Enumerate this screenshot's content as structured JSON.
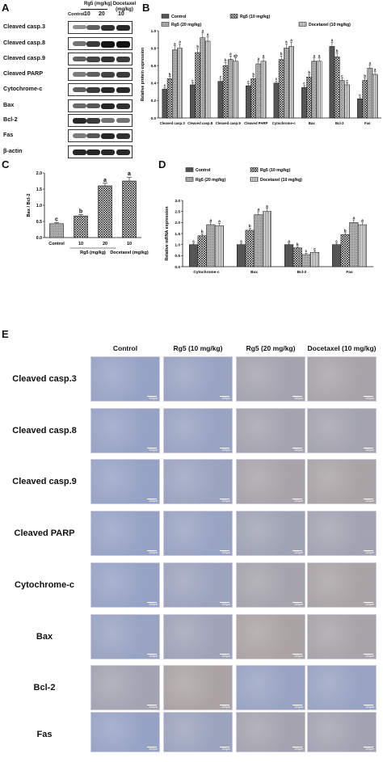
{
  "panels": {
    "A": "A",
    "B": "B",
    "C": "C",
    "D": "D",
    "E": "E"
  },
  "panel_a": {
    "header_control": "Control",
    "header_rg5": "Rg5 (mg/kg)",
    "header_docetaxel": "Docetaxel (mg/kg)",
    "doses": [
      "10",
      "20",
      "10"
    ],
    "rows": [
      {
        "label": "Cleaved casp.3",
        "intensity": [
          0.3,
          0.55,
          0.8,
          0.85
        ]
      },
      {
        "label": "Cleaved casp.8",
        "intensity": [
          0.45,
          0.75,
          0.95,
          0.95
        ]
      },
      {
        "label": "Cleaved casp.9",
        "intensity": [
          0.55,
          0.7,
          0.8,
          0.75
        ]
      },
      {
        "label": "Cleaved PARP",
        "intensity": [
          0.4,
          0.55,
          0.7,
          0.75
        ]
      },
      {
        "label": "Cytochrome-c",
        "intensity": [
          0.55,
          0.75,
          0.85,
          0.85
        ]
      },
      {
        "label": "Bax",
        "intensity": [
          0.5,
          0.6,
          0.85,
          0.8
        ]
      },
      {
        "label": "Bcl-2",
        "intensity": [
          0.85,
          0.75,
          0.45,
          0.45
        ]
      },
      {
        "label": "Fas",
        "intensity": [
          0.4,
          0.6,
          0.85,
          0.8
        ]
      },
      {
        "label": "β-actin",
        "intensity": [
          0.85,
          0.85,
          0.85,
          0.85
        ]
      }
    ]
  },
  "panel_e": {
    "columns": [
      "Control",
      "Rg5 (10 mg/kg)",
      "Rg5 (20 mg/kg)",
      "Docetaxel (10 mg/kg)"
    ],
    "rows": [
      "Cleaved casp.3",
      "Cleaved casp.8",
      "Cleaved casp.9",
      "Cleaved PARP",
      "Cytochrome-c",
      "Bax",
      "Bcl-2",
      "Fas"
    ],
    "scale_bar": "100μm",
    "colors": {
      "blue": "#93a3cc",
      "brown": "#b3a394"
    },
    "staining": [
      [
        0.05,
        0.1,
        0.45,
        0.55
      ],
      [
        0.05,
        0.1,
        0.45,
        0.45
      ],
      [
        0.05,
        0.15,
        0.55,
        0.6
      ],
      [
        0.05,
        0.1,
        0.35,
        0.4
      ],
      [
        0.05,
        0.2,
        0.5,
        0.6
      ],
      [
        0.1,
        0.3,
        0.65,
        0.55
      ],
      [
        0.4,
        0.65,
        0.1,
        0.1
      ],
      [
        0.05,
        0.2,
        0.45,
        0.4
      ]
    ]
  },
  "chart_data": [
    {
      "panel": "B",
      "type": "bar",
      "ylabel": "Relative protein expression",
      "ylim": [
        0,
        1.0
      ],
      "yticks": [
        "0.0",
        "0.2",
        "0.4",
        "0.6",
        "0.8",
        "1.0"
      ],
      "categories": [
        "Cleaved casp.3",
        "Cleaved casp.8",
        "Cleaved casp.9",
        "Cleaved PARP",
        "Cytochrome-c",
        "Bax",
        "Bcl-2",
        "Fas"
      ],
      "legend": "top",
      "series": [
        {
          "name": "Control",
          "values": [
            0.33,
            0.38,
            0.42,
            0.37,
            0.4,
            0.35,
            0.82,
            0.22
          ]
        },
        {
          "name": "Rg5 (10 mg/kg)",
          "values": [
            0.45,
            0.75,
            0.6,
            0.45,
            0.67,
            0.47,
            0.7,
            0.43
          ]
        },
        {
          "name": "Rg5 (20 mg/kg)",
          "values": [
            0.78,
            0.92,
            0.67,
            0.62,
            0.8,
            0.65,
            0.43,
            0.57
          ]
        },
        {
          "name": "Docetaxel (10 mg/kg)",
          "values": [
            0.8,
            0.88,
            0.65,
            0.65,
            0.82,
            0.65,
            0.38,
            0.5
          ]
        }
      ],
      "letters": [
        [
          "c",
          "b",
          "a",
          "a"
        ],
        [
          "c",
          "b",
          "a",
          "a"
        ],
        [
          "c",
          "b",
          "a",
          "ab"
        ],
        [
          "c",
          "b",
          "a",
          "a"
        ],
        [
          "c",
          "b",
          "a",
          "a"
        ],
        [
          "c",
          "b",
          "a",
          "a"
        ],
        [
          "a",
          "b",
          "c",
          "c"
        ],
        [
          "c",
          "b",
          "a",
          "a"
        ]
      ]
    },
    {
      "panel": "C",
      "type": "bar",
      "ylabel": "Bax / Bcl-2",
      "ylim": [
        0,
        2.0
      ],
      "yticks": [
        "0.0",
        "0.5",
        "1.0",
        "1.5",
        "2.0"
      ],
      "categories": [
        "Control",
        "10",
        "20",
        "10"
      ],
      "group_labels": [
        "Rg5 (mg/kg)",
        "Docetaxel (mg/kg)"
      ],
      "values": [
        0.43,
        0.67,
        1.6,
        1.75
      ],
      "errors": [
        0.03,
        0.04,
        0.08,
        0.12
      ],
      "letters": [
        "c",
        "b",
        "a",
        "a"
      ]
    },
    {
      "panel": "D",
      "type": "bar",
      "ylabel": "Relative mRNA expression",
      "ylim": [
        0,
        3.0
      ],
      "yticks": [
        "0.0",
        "0.5",
        "1.0",
        "1.5",
        "2.0",
        "2.5",
        "3.0"
      ],
      "categories": [
        "Cytochrome-c",
        "Bax",
        "Bcl-2",
        "Fas"
      ],
      "legend": "top",
      "series": [
        {
          "name": "Control",
          "values": [
            1.0,
            1.0,
            1.0,
            1.0
          ]
        },
        {
          "name": "Rg5 (10 mg/kg)",
          "values": [
            1.4,
            1.65,
            0.85,
            1.45
          ]
        },
        {
          "name": "Rg5 (20 mg/kg)",
          "values": [
            1.9,
            2.35,
            0.55,
            2.0
          ]
        },
        {
          "name": "Docetaxel (10 mg/kg)",
          "values": [
            1.85,
            2.5,
            0.65,
            1.9
          ]
        }
      ],
      "letters": [
        [
          "c",
          "b",
          "a",
          "a"
        ],
        [
          "c",
          "b",
          "a",
          "a"
        ],
        [
          "a",
          "b",
          "c",
          "c"
        ],
        [
          "c",
          "b",
          "a",
          "a"
        ]
      ]
    }
  ]
}
